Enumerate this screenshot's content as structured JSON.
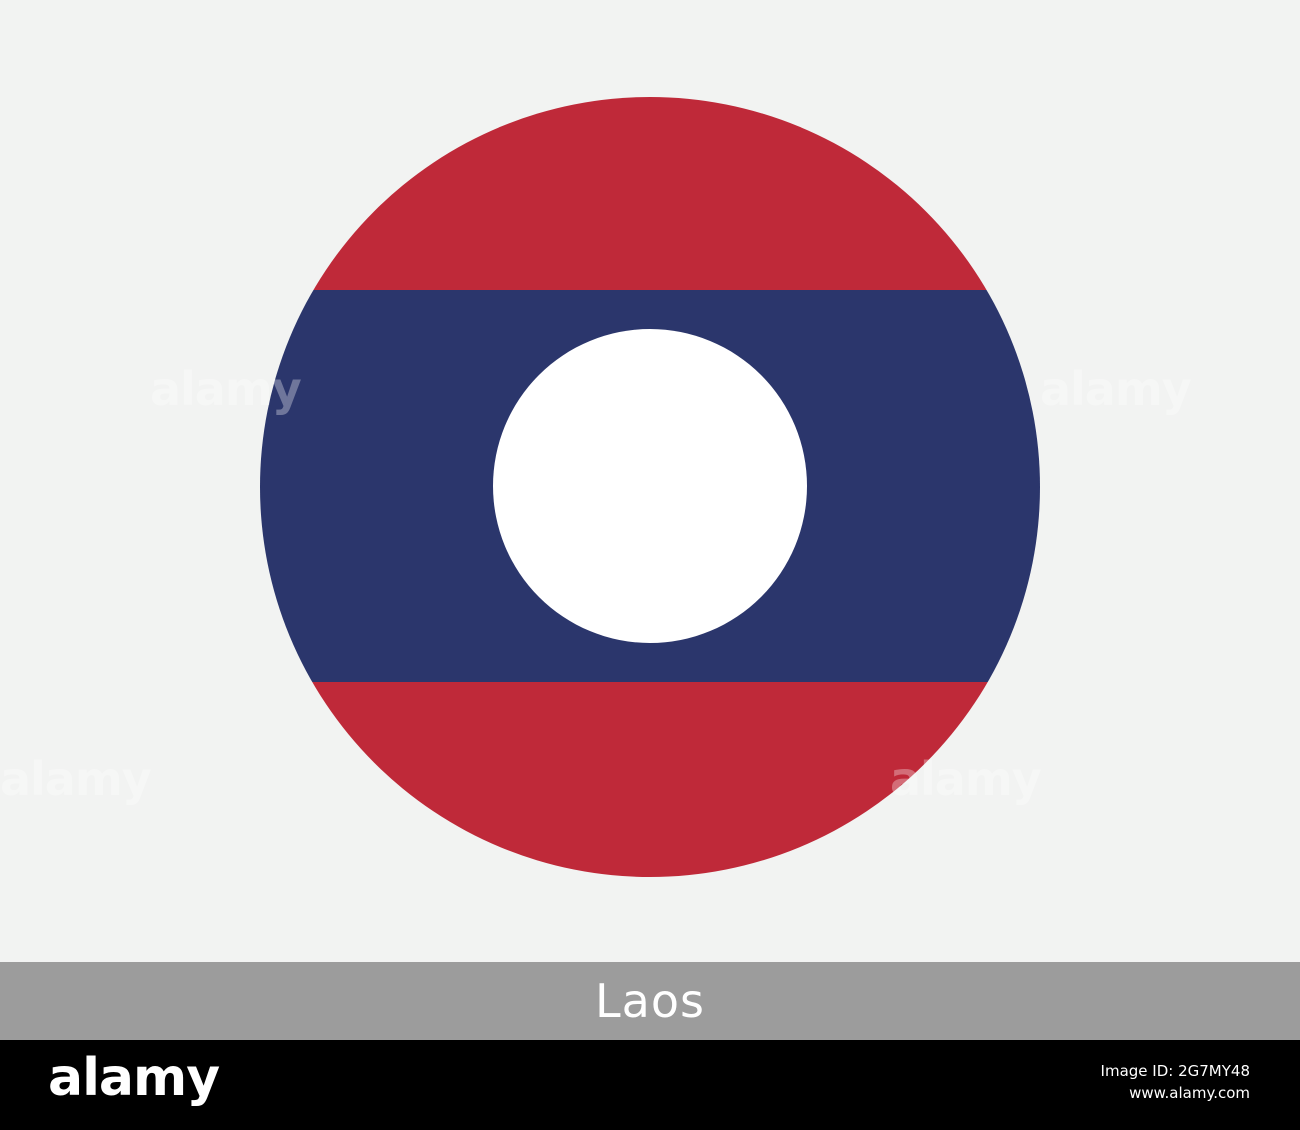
{
  "flag": {
    "country": "Laos",
    "colors": {
      "background": "#f2f3f2",
      "red": "#bf2939",
      "blue": "#2b366c",
      "disc": "#ffffff"
    }
  },
  "caption": {
    "text": "Laos"
  },
  "footer": {
    "logo": "alamy",
    "line1": "Image ID: 2G7MY48",
    "line2": "www.alamy.com"
  }
}
